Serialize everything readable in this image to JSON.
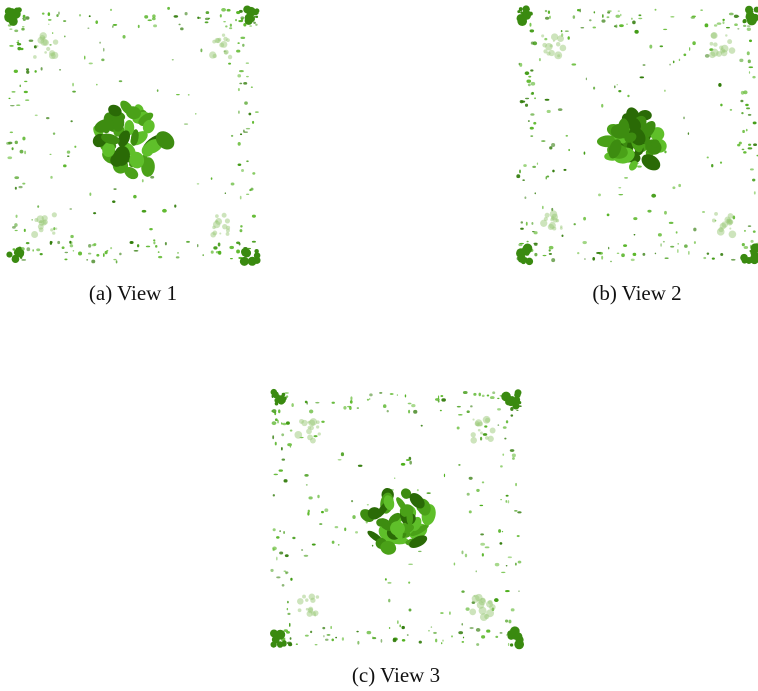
{
  "figure": {
    "panels": [
      {
        "caption": "(a) View 1"
      },
      {
        "caption": "(b) View 2"
      },
      {
        "caption": "(c) View 3"
      }
    ]
  }
}
